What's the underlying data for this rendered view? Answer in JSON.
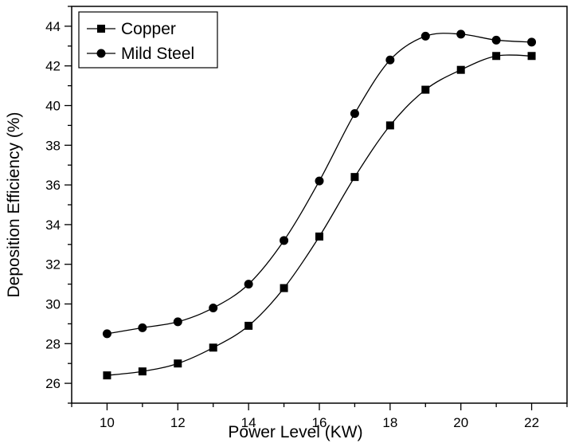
{
  "chart_data": {
    "type": "line",
    "title": "",
    "xlabel": "Power Level (KW)",
    "ylabel": "Deposition Efficiency (%)",
    "xlim": [
      9,
      23
    ],
    "ylim": [
      25,
      45
    ],
    "x_ticks": [
      10,
      12,
      14,
      16,
      18,
      20,
      22
    ],
    "y_ticks": [
      26,
      28,
      30,
      32,
      34,
      36,
      38,
      40,
      42,
      44
    ],
    "grid": false,
    "legend_position": "top-left",
    "x": [
      10,
      11,
      12,
      13,
      14,
      15,
      16,
      17,
      18,
      19,
      20,
      21,
      22
    ],
    "series": [
      {
        "name": "Copper",
        "marker": "square",
        "color": "#000000",
        "values": [
          26.4,
          26.6,
          27.0,
          27.8,
          28.9,
          30.8,
          33.4,
          36.4,
          39.0,
          40.8,
          41.8,
          42.5,
          42.5
        ]
      },
      {
        "name": "Mild Steel",
        "marker": "circle",
        "color": "#000000",
        "values": [
          28.5,
          28.8,
          29.1,
          29.8,
          31.0,
          33.2,
          36.2,
          39.6,
          42.3,
          43.5,
          43.6,
          43.3,
          43.2
        ]
      }
    ]
  }
}
